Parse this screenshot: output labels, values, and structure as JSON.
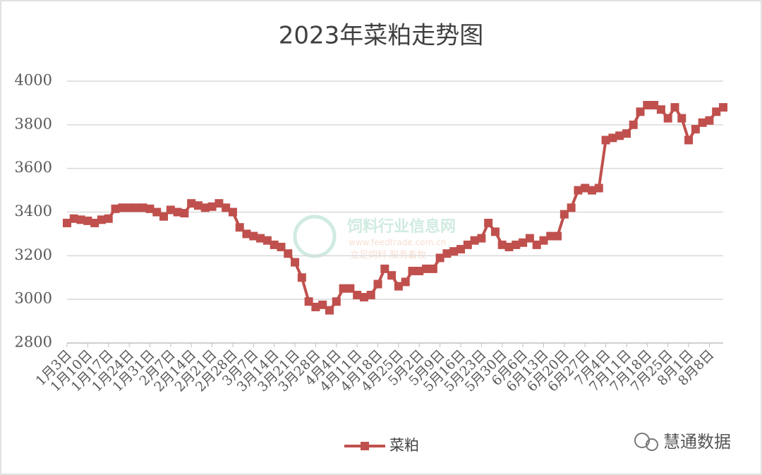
{
  "chart_data": {
    "type": "line",
    "title": "2023年菜粕走势图",
    "categories": [
      "1月3日",
      null,
      null,
      "1月10日",
      null,
      null,
      "1月17日",
      null,
      null,
      "1月24日",
      null,
      null,
      "1月31日",
      null,
      null,
      "2月7日",
      null,
      null,
      "2月14日",
      null,
      null,
      "2月21日",
      null,
      null,
      "2月28日",
      null,
      null,
      "3月7日",
      null,
      null,
      "3月14日",
      null,
      null,
      "3月21日",
      null,
      null,
      "3月28日",
      null,
      null,
      "4月4日",
      null,
      null,
      "4月11日",
      null,
      null,
      "4月18日",
      null,
      null,
      "4月25日",
      null,
      null,
      "5月2日",
      null,
      null,
      "5月9日",
      null,
      null,
      "5月16日",
      null,
      null,
      "5月23日",
      null,
      null,
      "5月30日",
      null,
      null,
      "6月6日",
      null,
      null,
      "6月13日",
      null,
      null,
      "6月20日",
      null,
      null,
      "6月27日",
      null,
      null,
      "7月4日",
      null,
      null,
      "7月11日",
      null,
      null,
      "7月18日",
      null,
      null,
      "7月25日",
      null,
      null,
      "8月1日",
      null,
      null,
      "8月8日",
      null,
      null
    ],
    "series": [
      {
        "name": "菜粕",
        "color": "#c0504d",
        "values": [
          3350,
          3370,
          3365,
          3360,
          3350,
          3365,
          3370,
          3415,
          3420,
          3420,
          3420,
          3420,
          3415,
          3400,
          3380,
          3410,
          3400,
          3395,
          3440,
          3430,
          3420,
          3425,
          3440,
          3420,
          3400,
          3330,
          3300,
          3290,
          3280,
          3270,
          3250,
          3240,
          3210,
          3170,
          3100,
          2990,
          2965,
          2975,
          2950,
          2990,
          3050,
          3050,
          3020,
          3010,
          3020,
          3070,
          3140,
          3110,
          3060,
          3080,
          3130,
          3130,
          3140,
          3140,
          3190,
          3210,
          3220,
          3230,
          3250,
          3270,
          3280,
          3350,
          3310,
          3250,
          3240,
          3250,
          3260,
          3280,
          3250,
          3270,
          3290,
          3290,
          3390,
          3420,
          3500,
          3510,
          3500,
          3510,
          3730,
          3740,
          3750,
          3760,
          3800,
          3860,
          3890,
          3890,
          3870,
          3830,
          3880,
          3830,
          3730,
          3780,
          3810,
          3820,
          3860,
          3880
        ]
      }
    ],
    "ylim": [
      2800,
      4000
    ],
    "yticks": [
      2800,
      3000,
      3200,
      3400,
      3600,
      3800,
      4000
    ],
    "grid": true,
    "legend": "bottom",
    "watermark": [
      "饲料行业信息网",
      "www.feedtrade.com.cn",
      "立足饲料 服务畜牧"
    ],
    "source": "慧通数据"
  }
}
